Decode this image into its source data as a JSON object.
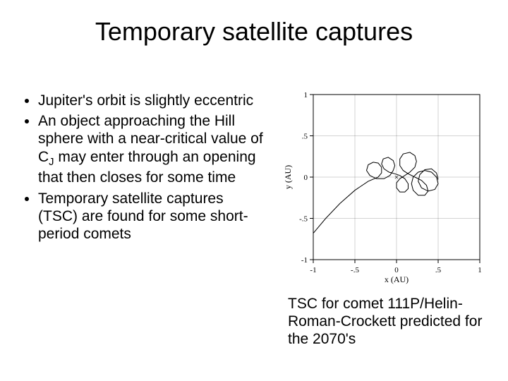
{
  "title": "Temporary satellite captures",
  "bullets": {
    "b1": "Jupiter's orbit is slightly eccentric",
    "b2_pre": "An object approaching the Hill sphere with a near-critical value of C",
    "b2_sub": "J",
    "b2_post": " may enter through an opening that then closes for some time",
    "b3": "Temporary satellite captures (TSC) are found for some short-period comets"
  },
  "caption": "TSC for comet 111P/Helin-Roman-Crockett predicted for the 2070's",
  "plot": {
    "type": "line",
    "xlabel": "x (AU)",
    "ylabel": "y (AU)",
    "xlim": [
      -1,
      1
    ],
    "ylim": [
      -1,
      1
    ],
    "xticks": [
      -1,
      -0.5,
      0,
      0.5,
      1
    ],
    "yticks": [
      -1,
      -0.5,
      0,
      0.5,
      1
    ],
    "xtick_labels": [
      "-1",
      "-.5",
      "0",
      ".5",
      "1"
    ],
    "ytick_labels": [
      "-1",
      "-.5",
      "0",
      ".5",
      "1"
    ],
    "background_color": "#ffffff",
    "axis_color": "#000000",
    "line_color": "#000000",
    "line_width": 1,
    "label_fontsize": 12,
    "tick_fontsize": 11,
    "trajectory": [
      [
        -1.0,
        -0.68
      ],
      [
        -0.85,
        -0.5
      ],
      [
        -0.68,
        -0.32
      ],
      [
        -0.5,
        -0.16
      ],
      [
        -0.34,
        -0.05
      ],
      [
        -0.22,
        0.0
      ],
      [
        -0.18,
        0.05
      ],
      [
        -0.18,
        0.12
      ],
      [
        -0.22,
        0.17
      ],
      [
        -0.28,
        0.18
      ],
      [
        -0.34,
        0.15
      ],
      [
        -0.36,
        0.08
      ],
      [
        -0.32,
        0.02
      ],
      [
        -0.24,
        -0.02
      ],
      [
        -0.15,
        -0.02
      ],
      [
        -0.08,
        0.02
      ],
      [
        -0.04,
        0.08
      ],
      [
        -0.02,
        0.14
      ],
      [
        -0.04,
        0.2
      ],
      [
        -0.1,
        0.24
      ],
      [
        -0.16,
        0.22
      ],
      [
        -0.18,
        0.16
      ],
      [
        -0.15,
        0.1
      ],
      [
        -0.09,
        0.06
      ],
      [
        -0.02,
        0.04
      ],
      [
        0.04,
        0.02
      ],
      [
        0.1,
        -0.02
      ],
      [
        0.14,
        -0.08
      ],
      [
        0.14,
        -0.14
      ],
      [
        0.1,
        -0.18
      ],
      [
        0.04,
        -0.18
      ],
      [
        0.0,
        -0.13
      ],
      [
        0.0,
        -0.07
      ],
      [
        0.04,
        -0.02
      ],
      [
        0.1,
        0.02
      ],
      [
        0.16,
        0.06
      ],
      [
        0.22,
        0.12
      ],
      [
        0.24,
        0.19
      ],
      [
        0.22,
        0.26
      ],
      [
        0.16,
        0.3
      ],
      [
        0.08,
        0.28
      ],
      [
        0.04,
        0.22
      ],
      [
        0.04,
        0.14
      ],
      [
        0.08,
        0.08
      ],
      [
        0.14,
        0.04
      ],
      [
        0.22,
        0.0
      ],
      [
        0.3,
        -0.04
      ],
      [
        0.36,
        -0.1
      ],
      [
        0.38,
        -0.17
      ],
      [
        0.34,
        -0.22
      ],
      [
        0.26,
        -0.22
      ],
      [
        0.2,
        -0.16
      ],
      [
        0.18,
        -0.08
      ],
      [
        0.2,
        0.0
      ],
      [
        0.26,
        0.06
      ],
      [
        0.34,
        0.08
      ],
      [
        0.42,
        0.06
      ],
      [
        0.48,
        0.0
      ],
      [
        0.5,
        -0.08
      ],
      [
        0.46,
        -0.15
      ],
      [
        0.38,
        -0.17
      ],
      [
        0.3,
        -0.13
      ],
      [
        0.26,
        -0.05
      ],
      [
        0.28,
        0.03
      ],
      [
        0.34,
        0.09
      ],
      [
        0.42,
        0.1
      ],
      [
        0.48,
        0.05
      ],
      [
        0.5,
        -0.03
      ]
    ]
  }
}
